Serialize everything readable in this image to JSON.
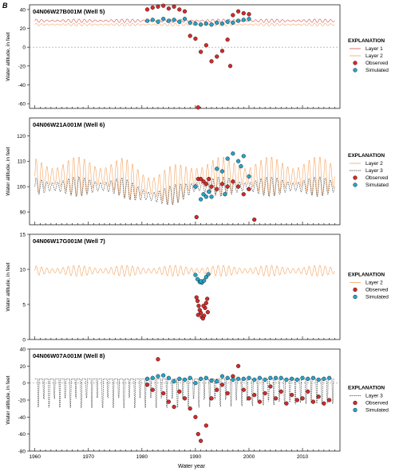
{
  "figure": {
    "panel_letter": "B",
    "xlabel": "Water year"
  },
  "colors": {
    "layer1": "#d9534f",
    "layer2": "#f4a460",
    "layer3": "#333333",
    "observed": "#d22b2b",
    "simulated": "#29a3c7"
  },
  "chart_data": [
    {
      "type": "line",
      "title": "04N06W27B001M (Well 5)",
      "ylabel": "Water altitude, in feet",
      "xlim": [
        1959,
        2017
      ],
      "ylim": [
        -65,
        45
      ],
      "yticks": [
        "-60",
        "-40",
        "-20",
        "0",
        "20",
        "40"
      ],
      "xticks": [
        "1960",
        "1970",
        "1980",
        "1990",
        "2000",
        "2010"
      ],
      "zero_line": true,
      "legend": {
        "title": "EXPLANATION",
        "position": "right",
        "entries": [
          "Layer 1",
          "Layer 2",
          "Observed",
          "Simulated"
        ]
      },
      "series": [
        {
          "name": "Layer 1",
          "style": "layer1",
          "base": 28,
          "amp": 2,
          "x": [
            1960,
            2016
          ]
        },
        {
          "name": "Layer 2",
          "style": "layer2",
          "base": 24,
          "amp": 1.5,
          "x": [
            1960,
            2016
          ]
        }
      ],
      "observed": [
        [
          1981,
          40
        ],
        [
          1982,
          42
        ],
        [
          1983,
          43
        ],
        [
          1984,
          44
        ],
        [
          1985,
          41
        ],
        [
          1986,
          43
        ],
        [
          1987,
          40
        ],
        [
          1988,
          38
        ],
        [
          1989,
          12
        ],
        [
          1990,
          9
        ],
        [
          1990.5,
          -64
        ],
        [
          1991,
          -5
        ],
        [
          1992,
          2
        ],
        [
          1993,
          -15
        ],
        [
          1994,
          -10
        ],
        [
          1995,
          -4
        ],
        [
          1996,
          8
        ],
        [
          1996.5,
          -20
        ],
        [
          1997,
          34
        ],
        [
          1998,
          38
        ],
        [
          1999,
          36
        ],
        [
          2000,
          35
        ]
      ],
      "simulated": [
        [
          1981,
          28
        ],
        [
          1982,
          29
        ],
        [
          1983,
          27
        ],
        [
          1984,
          30
        ],
        [
          1985,
          28
        ],
        [
          1986,
          29
        ],
        [
          1987,
          27
        ],
        [
          1988,
          30
        ],
        [
          1989,
          26
        ],
        [
          1990,
          25
        ],
        [
          1991,
          24
        ],
        [
          1992,
          25
        ],
        [
          1993,
          24
        ],
        [
          1994,
          26
        ],
        [
          1995,
          25
        ],
        [
          1996,
          27
        ],
        [
          1997,
          26
        ],
        [
          1998,
          28
        ],
        [
          1999,
          29
        ],
        [
          2000,
          30
        ]
      ]
    },
    {
      "type": "line",
      "title": "04N06W21A001M (Well 6)",
      "ylabel": "Water altitude, in feet",
      "xlim": [
        1959,
        2017
      ],
      "ylim": [
        85,
        127
      ],
      "yticks": [
        "90",
        "100",
        "110",
        "120"
      ],
      "xticks": [
        "1960",
        "1970",
        "1980",
        "1990",
        "2000",
        "2010"
      ],
      "zero_line": false,
      "legend": {
        "title": "EXPLANATION",
        "position": "right",
        "entries": [
          "Layer 2",
          "Layer 3",
          "Observed",
          "Simulated"
        ]
      },
      "series": [
        {
          "name": "Layer 2",
          "style": "layer2",
          "base": 104,
          "amp": 8,
          "x": [
            1960,
            2016
          ]
        },
        {
          "name": "Layer 3",
          "style": "layer3",
          "base": 100,
          "amp": 4,
          "x": [
            1960,
            2016
          ]
        }
      ],
      "observed": [
        [
          1990,
          100
        ],
        [
          1990.5,
          103
        ],
        [
          1991,
          103
        ],
        [
          1991.5,
          102
        ],
        [
          1992,
          101
        ],
        [
          1992.5,
          103
        ],
        [
          1993,
          100
        ],
        [
          1994,
          99
        ],
        [
          1995,
          101
        ],
        [
          1996,
          100
        ],
        [
          1997,
          102
        ],
        [
          1998,
          100
        ],
        [
          1999,
          97
        ],
        [
          2000,
          99
        ],
        [
          1990.2,
          88
        ],
        [
          2001,
          87
        ]
      ],
      "simulated": [
        [
          1990,
          100
        ],
        [
          1991,
          95
        ],
        [
          1991.5,
          97
        ],
        [
          1992,
          96
        ],
        [
          1992.5,
          98
        ],
        [
          1993,
          96
        ],
        [
          1994,
          107
        ],
        [
          1995,
          106
        ],
        [
          1996,
          111
        ],
        [
          1997,
          113
        ],
        [
          1998,
          110
        ],
        [
          1999,
          112
        ],
        [
          2000,
          104
        ],
        [
          1995.5,
          97
        ],
        [
          1998.5,
          108
        ]
      ]
    },
    {
      "type": "line",
      "title": "04N06W17G001M (Well 7)",
      "ylabel": "Water altitude, in feet",
      "xlim": [
        1959,
        2017
      ],
      "ylim": [
        0,
        15
      ],
      "yticks": [
        "0",
        "5",
        "10",
        "15"
      ],
      "xticks": [
        "1960",
        "1970",
        "1980",
        "1990",
        "2000",
        "2010"
      ],
      "zero_line": false,
      "legend": {
        "title": "EXPLANATION",
        "position": "right",
        "entries": [
          "Layer 2",
          "Observed",
          "Simulated"
        ]
      },
      "series": [
        {
          "name": "Layer 2",
          "style": "layer2",
          "base": 9.8,
          "amp": 0.8,
          "x": [
            1960,
            2016
          ]
        }
      ],
      "observed": [
        [
          1990.2,
          6
        ],
        [
          1990.4,
          5.5
        ],
        [
          1990.6,
          4.8
        ],
        [
          1990.8,
          4.2
        ],
        [
          1991,
          3.8
        ],
        [
          1991.2,
          3.2
        ],
        [
          1991.4,
          3
        ],
        [
          1991.6,
          3.4
        ],
        [
          1991.8,
          4.5
        ],
        [
          1992,
          5.2
        ],
        [
          1992.2,
          5.8
        ],
        [
          1990.5,
          3.5
        ],
        [
          1991.5,
          4.8
        ],
        [
          1992.3,
          3.9
        ]
      ],
      "simulated": [
        [
          1990,
          9.2
        ],
        [
          1990.4,
          8.6
        ],
        [
          1990.8,
          8.2
        ],
        [
          1991.2,
          8.1
        ],
        [
          1991.6,
          8.4
        ],
        [
          1992,
          8.9
        ],
        [
          1992.4,
          9.3
        ],
        [
          1991,
          8.3
        ]
      ]
    },
    {
      "type": "line",
      "title": "04N06W07A001M (Well 8)",
      "ylabel": "Water altitude, in feet",
      "xlim": [
        1959,
        2017
      ],
      "ylim": [
        -80,
        40
      ],
      "yticks": [
        "-80",
        "-60",
        "-40",
        "-20",
        "0",
        "20",
        "40"
      ],
      "xticks": [
        "1960",
        "1970",
        "1980",
        "1990",
        "2000",
        "2010"
      ],
      "zero_line": true,
      "legend": {
        "title": "EXPLANATION",
        "position": "right",
        "entries": [
          "Layer 3",
          "Observed",
          "Simulated"
        ]
      },
      "series": [
        {
          "name": "Layer 3",
          "style": "layer3",
          "base": 5,
          "amp": 0,
          "x": [
            1960,
            2016
          ],
          "dips": true
        }
      ],
      "observed": [
        [
          1981,
          -2
        ],
        [
          1982,
          -8
        ],
        [
          1983,
          28
        ],
        [
          1984,
          -12
        ],
        [
          1985,
          -22
        ],
        [
          1986,
          -28
        ],
        [
          1987,
          -10
        ],
        [
          1988,
          -18
        ],
        [
          1989,
          -30
        ],
        [
          1990,
          -40
        ],
        [
          1990.5,
          -60
        ],
        [
          1991,
          -68
        ],
        [
          1992,
          -50
        ],
        [
          1993,
          -18
        ],
        [
          1994,
          -8
        ],
        [
          1995,
          -2
        ],
        [
          1996,
          -12
        ],
        [
          1997,
          8
        ],
        [
          1998,
          20
        ],
        [
          1999,
          -8
        ],
        [
          2000,
          -18
        ],
        [
          2001,
          -14
        ],
        [
          2002,
          -22
        ],
        [
          2003,
          -12
        ],
        [
          2004,
          -4
        ],
        [
          2005,
          -18
        ],
        [
          2006,
          -10
        ],
        [
          2007,
          -24
        ],
        [
          2008,
          -14
        ],
        [
          2009,
          -20
        ],
        [
          2010,
          -18
        ],
        [
          2011,
          -10
        ],
        [
          2012,
          -22
        ],
        [
          2013,
          -16
        ],
        [
          2014,
          -24
        ],
        [
          2015,
          -20
        ]
      ],
      "simulated": [
        [
          1981,
          5
        ],
        [
          1982,
          6
        ],
        [
          1983,
          8
        ],
        [
          1984,
          9
        ],
        [
          1985,
          6
        ],
        [
          1986,
          2
        ],
        [
          1987,
          5
        ],
        [
          1988,
          4
        ],
        [
          1989,
          6
        ],
        [
          1990,
          0
        ],
        [
          1991,
          5
        ],
        [
          1992,
          6
        ],
        [
          1993,
          3
        ],
        [
          1994,
          2
        ],
        [
          1995,
          8
        ],
        [
          1996,
          6
        ],
        [
          1997,
          4
        ],
        [
          1998,
          5
        ],
        [
          1999,
          5
        ],
        [
          2000,
          6
        ],
        [
          2001,
          4
        ],
        [
          2002,
          6
        ],
        [
          2003,
          4
        ],
        [
          2004,
          6
        ],
        [
          2005,
          6
        ],
        [
          2006,
          6
        ],
        [
          2007,
          4
        ],
        [
          2008,
          5
        ],
        [
          2009,
          4
        ],
        [
          2010,
          6
        ],
        [
          2011,
          5
        ],
        [
          2012,
          6
        ],
        [
          2013,
          4
        ],
        [
          2014,
          5
        ],
        [
          2015,
          6
        ]
      ]
    }
  ]
}
